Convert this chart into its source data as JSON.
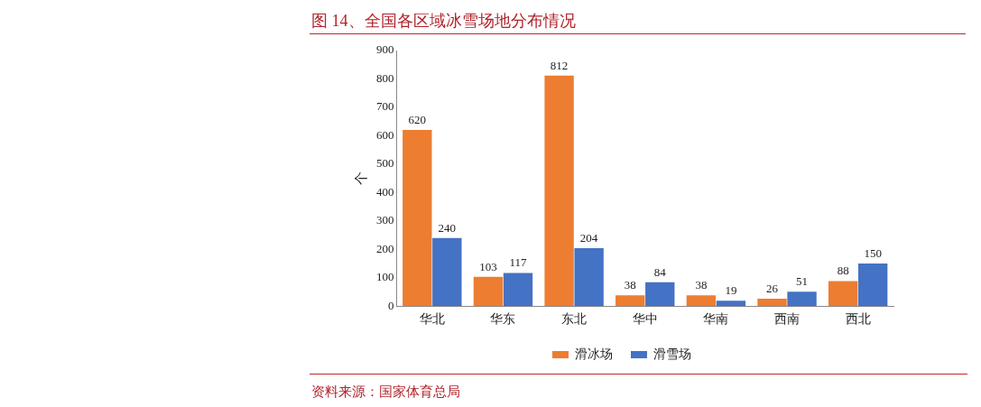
{
  "chart_data": {
    "type": "bar",
    "title": "图 14、全国各区域冰雪场地分布情况",
    "ylabel": "个",
    "categories": [
      "华北",
      "华东",
      "东北",
      "华中",
      "华南",
      "西南",
      "西北"
    ],
    "series": [
      {
        "name": "滑冰场",
        "color": "#ed7d31",
        "values": [
          620,
          103,
          812,
          38,
          38,
          26,
          88
        ]
      },
      {
        "name": "滑雪场",
        "color": "#4472c4",
        "values": [
          240,
          117,
          204,
          84,
          19,
          51,
          150
        ]
      }
    ],
    "ylim": [
      0,
      900
    ],
    "yticks": [
      0,
      100,
      200,
      300,
      400,
      500,
      600,
      700,
      800,
      900
    ],
    "grid": false,
    "legend": "bottom",
    "data_labels": true,
    "annotations": [
      "资料来源：国家体育总局"
    ]
  }
}
